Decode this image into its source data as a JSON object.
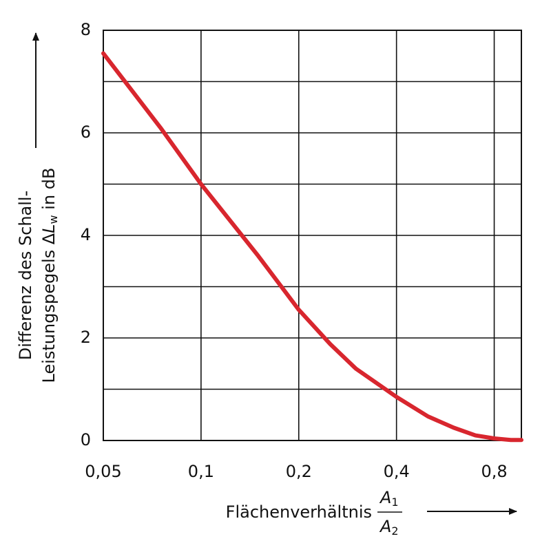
{
  "chart_data": {
    "type": "line",
    "x_label": "Flächenverhältnis",
    "x_label_fraction": {
      "numerator": [
        "A",
        "1"
      ],
      "denominator": [
        "A",
        "2"
      ]
    },
    "y_label_line1": "Differenz des Schall-",
    "y_label_line2": [
      "Leistungspegels ",
      "Δ",
      "L",
      "w",
      " in dB"
    ],
    "x": [
      0.05,
      0.075,
      0.1,
      0.15,
      0.2,
      0.25,
      0.3,
      0.4,
      0.5,
      0.6,
      0.7,
      0.8,
      0.9,
      0.97
    ],
    "series": [
      {
        "color": "#d8262e",
        "values": [
          7.55,
          6.1,
          5.0,
          3.6,
          2.55,
          1.88,
          1.4,
          0.85,
          0.47,
          0.25,
          0.1,
          0.04,
          0.01,
          0.01
        ]
      }
    ],
    "xscale": "log",
    "xlim": [
      0.05,
      0.97
    ],
    "ylim": [
      0,
      8
    ],
    "xticks": [
      {
        "value": 0.05,
        "label": "0,05"
      },
      {
        "value": 0.1,
        "label": "0,1"
      },
      {
        "value": 0.2,
        "label": "0,2"
      },
      {
        "value": 0.4,
        "label": "0,4"
      },
      {
        "value": 0.8,
        "label": "0,8"
      }
    ],
    "yticks": [
      0,
      2,
      4,
      6,
      8
    ],
    "y_minor_grid": [
      1,
      3,
      5,
      7
    ],
    "grid": true
  }
}
